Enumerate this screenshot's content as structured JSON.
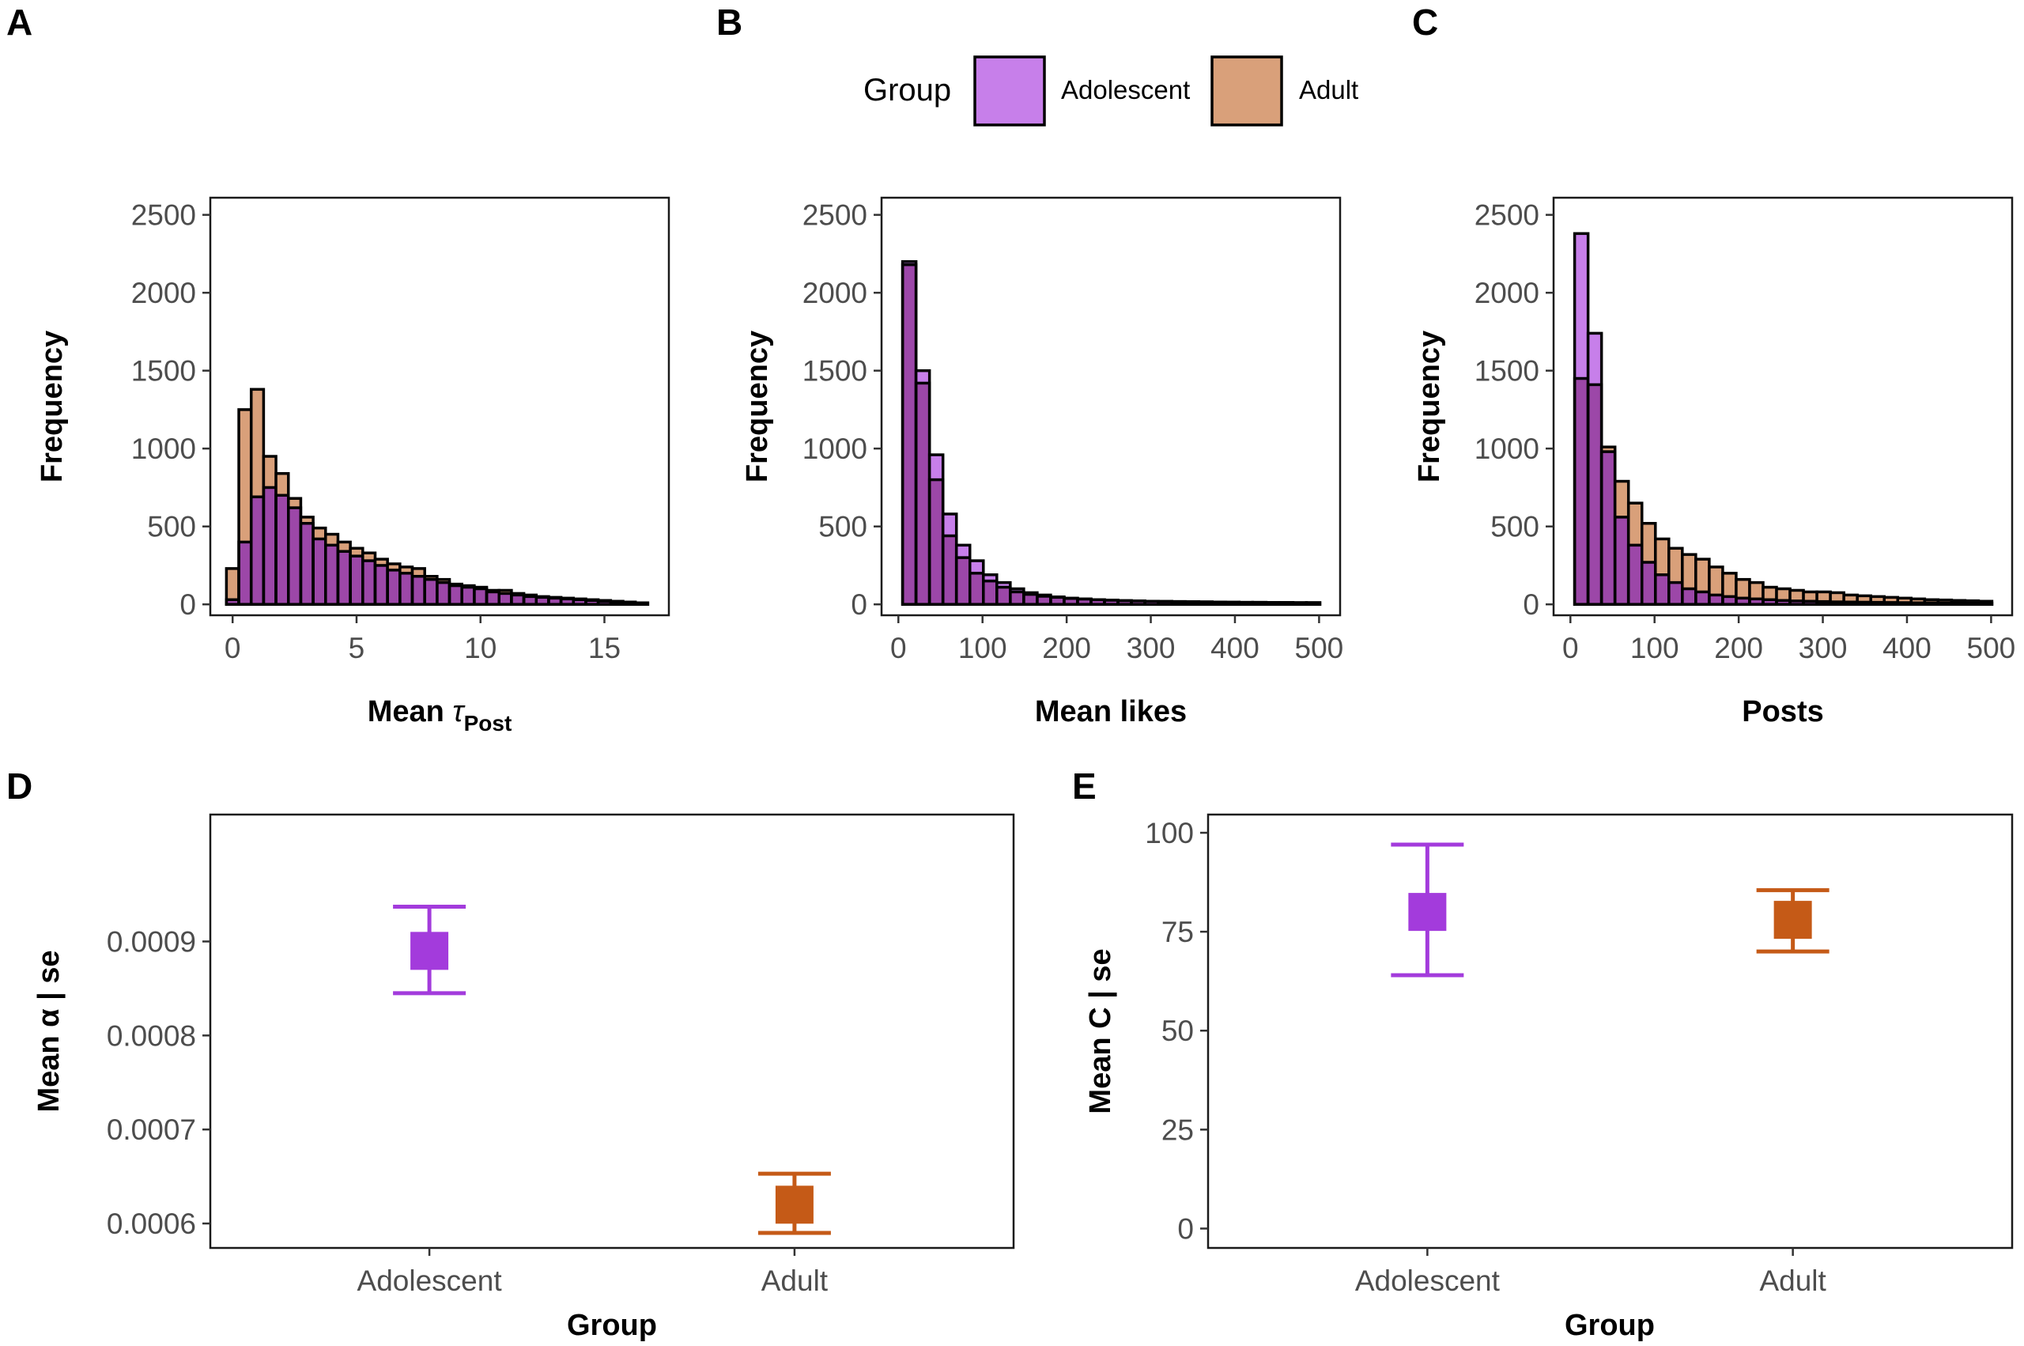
{
  "legend": {
    "title": "Group",
    "items": [
      {
        "label": "Adolescent",
        "fill": "#c77fea",
        "point_color": "#a33bdc"
      },
      {
        "label": "Adult",
        "fill": "#d9a07a",
        "point_color": "#c55a17"
      }
    ]
  },
  "colors": {
    "adolescent_fill": "#c77fea",
    "adult_fill": "#d9a07a",
    "overlap_fill": "#9c47a8",
    "adolescent_point": "#a33bdc",
    "adult_point": "#c55a17"
  },
  "chart_data": [
    {
      "panel": "A",
      "type": "bar",
      "subtype": "overlaid-histogram",
      "title": "",
      "xlabel": "Mean τPost",
      "xlabel_main": "Mean ",
      "xlabel_symbol": "τ",
      "xlabel_sub": "Post",
      "ylabel": "Frequency",
      "xlim": [
        -0.9,
        17.6
      ],
      "ylim": [
        -70,
        2610
      ],
      "xticks": [
        0,
        5,
        10,
        15
      ],
      "yticks": [
        0,
        500,
        1000,
        1500,
        2000,
        2500
      ],
      "bins": {
        "start": -0.25,
        "width": 0.5
      },
      "series": [
        {
          "name": "Adolescent",
          "values": [
            30,
            400,
            690,
            750,
            700,
            620,
            520,
            420,
            380,
            340,
            310,
            280,
            250,
            220,
            200,
            180,
            160,
            140,
            120,
            110,
            100,
            80,
            70,
            60,
            50,
            45,
            40,
            35,
            30,
            25,
            20,
            15,
            10,
            8
          ]
        },
        {
          "name": "Adult",
          "values": [
            230,
            1250,
            1380,
            950,
            840,
            680,
            560,
            490,
            450,
            400,
            360,
            330,
            290,
            260,
            240,
            230,
            180,
            160,
            130,
            120,
            110,
            90,
            90,
            70,
            60,
            50,
            45,
            40,
            35,
            30,
            25,
            20,
            15,
            10
          ]
        }
      ]
    },
    {
      "panel": "B",
      "type": "bar",
      "subtype": "overlaid-histogram",
      "title": "",
      "xlabel": "Mean likes",
      "ylabel": "Frequency",
      "xlim": [
        -20,
        525
      ],
      "ylim": [
        -70,
        2610
      ],
      "xticks": [
        0,
        100,
        200,
        300,
        400,
        500
      ],
      "yticks": [
        0,
        500,
        1000,
        1500,
        2000,
        2500
      ],
      "bins": {
        "start": 5,
        "width": 16
      },
      "series": [
        {
          "name": "Adolescent",
          "values": [
            2200,
            1500,
            960,
            580,
            380,
            280,
            190,
            140,
            100,
            75,
            60,
            48,
            40,
            35,
            30,
            27,
            24,
            22,
            20,
            19,
            18,
            17,
            16,
            15,
            14,
            13,
            13,
            12,
            12,
            11,
            11
          ]
        },
        {
          "name": "Adult",
          "values": [
            2180,
            1420,
            800,
            440,
            300,
            200,
            150,
            110,
            80,
            64,
            52,
            45,
            38,
            34,
            30,
            27,
            24,
            22,
            20,
            19,
            18,
            17,
            16,
            15,
            14,
            13,
            13,
            12,
            12,
            11,
            11
          ]
        }
      ]
    },
    {
      "panel": "C",
      "type": "bar",
      "subtype": "overlaid-histogram",
      "title": "",
      "xlabel": "Posts",
      "ylabel": "Frequency",
      "xlim": [
        -20,
        525
      ],
      "ylim": [
        -70,
        2610
      ],
      "xticks": [
        0,
        100,
        200,
        300,
        400,
        500
      ],
      "yticks": [
        0,
        500,
        1000,
        1500,
        2000,
        2500
      ],
      "bins": {
        "start": 5,
        "width": 16
      },
      "series": [
        {
          "name": "Adolescent",
          "values": [
            2380,
            1740,
            980,
            560,
            380,
            270,
            190,
            140,
            100,
            80,
            60,
            50,
            40,
            35,
            30,
            25,
            22,
            20,
            18,
            16,
            15,
            14,
            13,
            12,
            11,
            10,
            10,
            9,
            9,
            8,
            8
          ]
        },
        {
          "name": "Adult",
          "values": [
            1450,
            1410,
            1010,
            790,
            650,
            520,
            420,
            360,
            320,
            290,
            240,
            200,
            160,
            140,
            110,
            100,
            90,
            80,
            80,
            75,
            60,
            55,
            50,
            45,
            40,
            35,
            30,
            28,
            25,
            23,
            20
          ]
        }
      ]
    },
    {
      "panel": "D",
      "type": "scatter",
      "subtype": "point-errorbar",
      "title": "",
      "xlabel": "Group",
      "ylabel": "Mean α | se",
      "categories": [
        "Adolescent",
        "Adult"
      ],
      "ylim": [
        0.000574,
        0.001035
      ],
      "yticks": [
        0.0006,
        0.0007,
        0.0008,
        0.0009
      ],
      "ytick_labels": [
        "0.0006",
        "0.0007",
        "0.0008",
        "0.0009"
      ],
      "series": [
        {
          "name": "Adolescent",
          "mean": 0.00089,
          "lower": 0.000845,
          "upper": 0.000937
        },
        {
          "name": "Adult",
          "mean": 0.00062,
          "lower": 0.00059,
          "upper": 0.000653
        }
      ]
    },
    {
      "panel": "E",
      "type": "scatter",
      "subtype": "point-errorbar",
      "title": "",
      "xlabel": "Group",
      "ylabel": "Mean C | se",
      "categories": [
        "Adolescent",
        "Adult"
      ],
      "ylim": [
        -4.9,
        104.6
      ],
      "yticks": [
        0,
        25,
        50,
        75,
        100
      ],
      "ytick_labels": [
        "0",
        "25",
        "50",
        "75",
        "100"
      ],
      "series": [
        {
          "name": "Adolescent",
          "mean": 80,
          "lower": 64,
          "upper": 97
        },
        {
          "name": "Adult",
          "mean": 78,
          "lower": 70,
          "upper": 85.5
        }
      ]
    }
  ]
}
